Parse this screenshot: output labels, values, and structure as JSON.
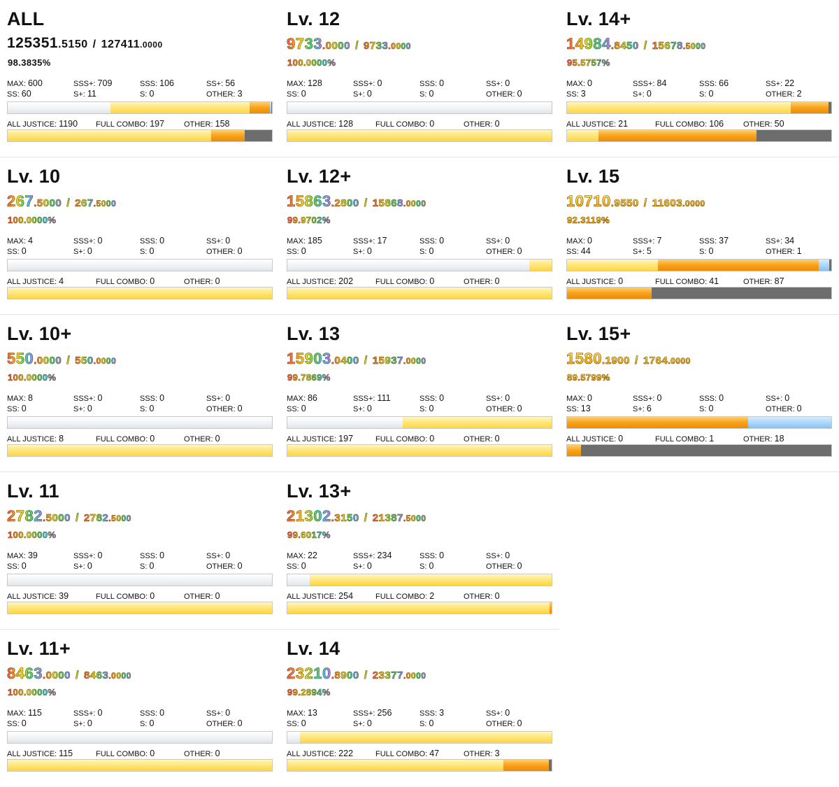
{
  "panels": [
    {
      "title": "ALL",
      "score_int": "125351",
      "score_dec": ".5150",
      "max_int": "127411",
      "max_dec": ".0000",
      "pct": "98.3835%",
      "style": "plain",
      "max": "600",
      "sss_plus": "709",
      "sss": "106",
      "ss_plus": "56",
      "ss": "60",
      "s_plus": "11",
      "s": "0",
      "other": "3",
      "aj": "1190",
      "fc": "197",
      "combo_other": "158"
    },
    {
      "title": "Lv. 10",
      "score_int": "267",
      "score_dec": ".5000",
      "max_int": "267",
      "max_dec": ".5000",
      "pct": "100.0000%",
      "style": "rainbow",
      "max": "4",
      "sss_plus": "0",
      "sss": "0",
      "ss_plus": "0",
      "ss": "0",
      "s_plus": "0",
      "s": "0",
      "other": "0",
      "aj": "4",
      "fc": "0",
      "combo_other": "0"
    },
    {
      "title": "Lv. 10+",
      "score_int": "550",
      "score_dec": ".0000",
      "max_int": "550",
      "max_dec": ".0000",
      "pct": "100.0000%",
      "style": "rainbow",
      "max": "8",
      "sss_plus": "0",
      "sss": "0",
      "ss_plus": "0",
      "ss": "0",
      "s_plus": "0",
      "s": "0",
      "other": "0",
      "aj": "8",
      "fc": "0",
      "combo_other": "0"
    },
    {
      "title": "Lv. 11",
      "score_int": "2782",
      "score_dec": ".5000",
      "max_int": "2782",
      "max_dec": ".5000",
      "pct": "100.0000%",
      "style": "rainbow",
      "max": "39",
      "sss_plus": "0",
      "sss": "0",
      "ss_plus": "0",
      "ss": "0",
      "s_plus": "0",
      "s": "0",
      "other": "0",
      "aj": "39",
      "fc": "0",
      "combo_other": "0"
    },
    {
      "title": "Lv. 11+",
      "score_int": "8463",
      "score_dec": ".0000",
      "max_int": "8463",
      "max_dec": ".0000",
      "pct": "100.0000%",
      "style": "rainbow",
      "max": "115",
      "sss_plus": "0",
      "sss": "0",
      "ss_plus": "0",
      "ss": "0",
      "s_plus": "0",
      "s": "0",
      "other": "0",
      "aj": "115",
      "fc": "0",
      "combo_other": "0"
    },
    {
      "title": "Lv. 12",
      "score_int": "9733",
      "score_dec": ".0000",
      "max_int": "9733",
      "max_dec": ".0000",
      "pct": "100.0000%",
      "style": "rainbow",
      "max": "128",
      "sss_plus": "0",
      "sss": "0",
      "ss_plus": "0",
      "ss": "0",
      "s_plus": "0",
      "s": "0",
      "other": "0",
      "aj": "128",
      "fc": "0",
      "combo_other": "0"
    },
    {
      "title": "Lv. 12+",
      "score_int": "15863",
      "score_dec": ".2800",
      "max_int": "15868",
      "max_dec": ".0000",
      "pct": "99.9702%",
      "style": "rainbow",
      "max": "185",
      "sss_plus": "17",
      "sss": "0",
      "ss_plus": "0",
      "ss": "0",
      "s_plus": "0",
      "s": "0",
      "other": "0",
      "aj": "202",
      "fc": "0",
      "combo_other": "0"
    },
    {
      "title": "Lv. 13",
      "score_int": "15903",
      "score_dec": ".0400",
      "max_int": "15937",
      "max_dec": ".0000",
      "pct": "99.7869%",
      "style": "rainbow",
      "max": "86",
      "sss_plus": "111",
      "sss": "0",
      "ss_plus": "0",
      "ss": "0",
      "s_plus": "0",
      "s": "0",
      "other": "0",
      "aj": "197",
      "fc": "0",
      "combo_other": "0"
    },
    {
      "title": "Lv. 13+",
      "score_int": "21302",
      "score_dec": ".3150",
      "max_int": "21387",
      "max_dec": ".5000",
      "pct": "99.6017%",
      "style": "rainbow",
      "max": "22",
      "sss_plus": "234",
      "sss": "0",
      "ss_plus": "0",
      "ss": "0",
      "s_plus": "0",
      "s": "0",
      "other": "0",
      "aj": "254",
      "fc": "2",
      "combo_other": "0"
    },
    {
      "title": "Lv. 14",
      "score_int": "23210",
      "score_dec": ".8900",
      "max_int": "23377",
      "max_dec": ".0000",
      "pct": "99.2894%",
      "style": "rainbow",
      "max": "13",
      "sss_plus": "256",
      "sss": "3",
      "ss_plus": "0",
      "ss": "0",
      "s_plus": "0",
      "s": "0",
      "other": "0",
      "aj": "222",
      "fc": "47",
      "combo_other": "3"
    },
    {
      "title": "Lv. 14+",
      "score_int": "14984",
      "score_dec": ".8450",
      "max_int": "15678",
      "max_dec": ".5000",
      "pct": "95.5757%",
      "style": "rainbow",
      "max": "0",
      "sss_plus": "84",
      "sss": "66",
      "ss_plus": "22",
      "ss": "3",
      "s_plus": "0",
      "s": "0",
      "other": "2",
      "aj": "21",
      "fc": "106",
      "combo_other": "50"
    },
    {
      "title": "Lv. 15",
      "score_int": "10710",
      "score_dec": ".9550",
      "max_int": "11603",
      "max_dec": ".0000",
      "pct": "92.3119%",
      "style": "gold",
      "max": "0",
      "sss_plus": "7",
      "sss": "37",
      "ss_plus": "34",
      "ss": "44",
      "s_plus": "5",
      "s": "0",
      "other": "1",
      "aj": "0",
      "fc": "41",
      "combo_other": "87"
    },
    {
      "title": "Lv. 15+",
      "score_int": "1580",
      "score_dec": ".1900",
      "max_int": "1764",
      "max_dec": ".0000",
      "pct": "89.5799%",
      "style": "gold",
      "max": "0",
      "sss_plus": "0",
      "sss": "0",
      "ss_plus": "0",
      "ss": "13",
      "s_plus": "6",
      "s": "0",
      "other": "0",
      "aj": "0",
      "fc": "1",
      "combo_other": "18"
    }
  ],
  "labels": {
    "max": "MAX: ",
    "sss_plus": "SSS+: ",
    "sss": "SSS: ",
    "ss_plus": "SS+: ",
    "ss": "SS: ",
    "s_plus": "S+: ",
    "s": "S: ",
    "other": "OTHER: ",
    "aj": "ALL JUSTICE: ",
    "fc": "FULL COMBO: ",
    "combo_other": "OTHER: ",
    "slash": "/"
  },
  "colors": {
    "bar_white": "#e8ecef",
    "bar_yellow": "#ffe57a",
    "bar_orange": "#f7a21a",
    "bar_blue": "#a9d5fb",
    "bar_gray": "#6d6d6d"
  }
}
